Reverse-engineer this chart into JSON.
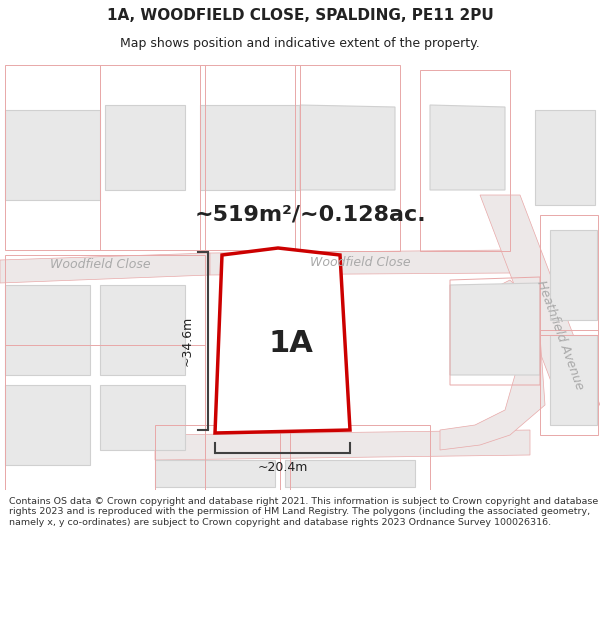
{
  "title": "1A, WOODFIELD CLOSE, SPALDING, PE11 2PU",
  "subtitle": "Map shows position and indicative extent of the property.",
  "area_text": "~519m²/~0.128ac.",
  "label_1a": "1A",
  "dim_height": "~34.6m",
  "dim_width": "~20.4m",
  "street_left": "Woodfield Close",
  "street_center": "Woodfield Close",
  "street_right": "Heathfield Avenue",
  "footer": "Contains OS data © Crown copyright and database right 2021. This information is subject to Crown copyright and database rights 2023 and is reproduced with the permission of HM Land Registry. The polygons (including the associated geometry, namely x, y co-ordinates) are subject to Crown copyright and database rights 2023 Ordnance Survey 100026316.",
  "bg_color": "#ffffff",
  "map_bg": "#f7f5f5",
  "plot_fill": "#ffffff",
  "plot_edge": "#cc0000",
  "road_color": "#ede8e8",
  "building_fill": "#e8e8e8",
  "building_edge": "#d0d0d0",
  "pink_edge": "#e8a8a8",
  "pink_fill": "#f5eeee",
  "dim_line_color": "#404040",
  "text_color": "#222222",
  "street_label_color": "#aaaaaa",
  "footer_color": "#333333"
}
